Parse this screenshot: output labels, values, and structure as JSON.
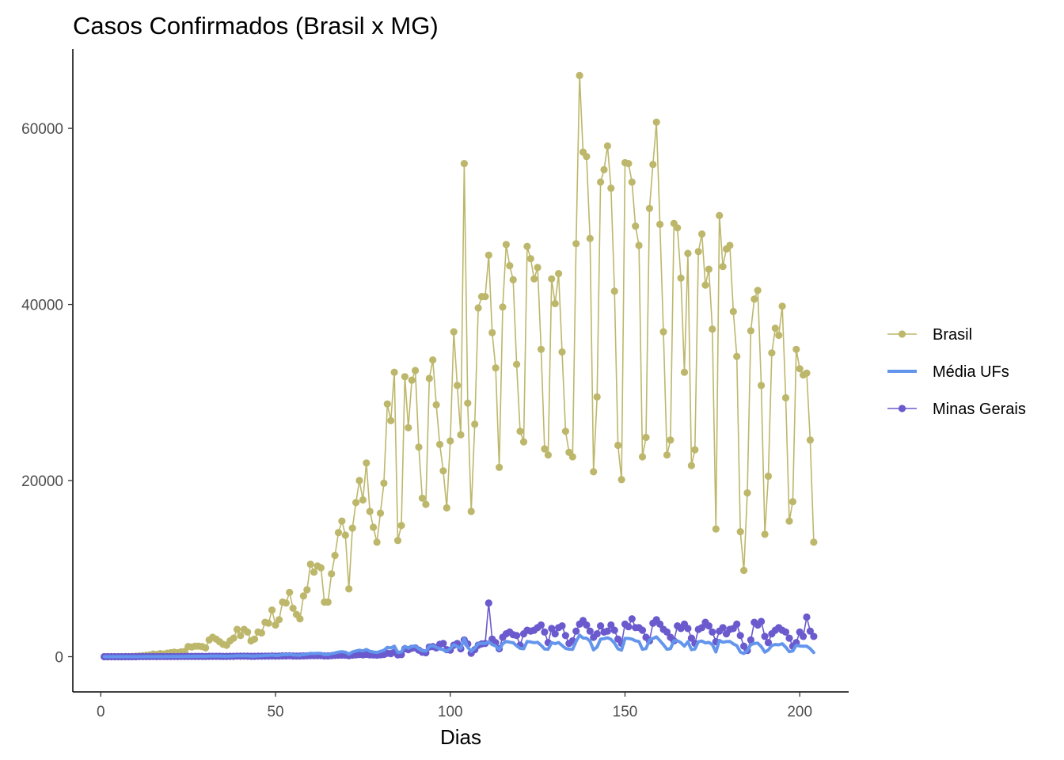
{
  "chart_data": {
    "type": "line",
    "title": "Casos Confirmados (Brasil x MG)",
    "xlabel": "Dias",
    "ylabel": "",
    "xlim": [
      -8,
      214
    ],
    "ylim": [
      -4000,
      69000
    ],
    "x_ticks": [
      0,
      50,
      100,
      150,
      200
    ],
    "y_ticks": [
      0,
      20000,
      40000,
      60000
    ],
    "grid": false,
    "legend_position": "right",
    "series": [
      {
        "name": "Brasil",
        "color": "#bdb76b",
        "style": "line-points",
        "x": [
          1,
          2,
          3,
          4,
          5,
          6,
          7,
          8,
          9,
          10,
          11,
          12,
          13,
          14,
          15,
          16,
          17,
          18,
          19,
          20,
          21,
          22,
          23,
          24,
          25,
          26,
          27,
          28,
          29,
          30,
          31,
          32,
          33,
          34,
          35,
          36,
          37,
          38,
          39,
          40,
          41,
          42,
          43,
          44,
          45,
          46,
          47,
          48,
          49,
          50,
          51,
          52,
          53,
          54,
          55,
          56,
          57,
          58,
          59,
          60,
          61,
          62,
          63,
          64,
          65,
          66,
          67,
          68,
          69,
          70,
          71,
          72,
          73,
          74,
          75,
          76,
          77,
          78,
          79,
          80,
          81,
          82,
          83,
          84,
          85,
          86,
          87,
          88,
          89,
          90,
          91,
          92,
          93,
          94,
          95,
          96,
          97,
          98,
          99,
          100,
          101,
          102,
          103,
          104,
          105,
          106,
          107,
          108,
          109,
          110,
          111,
          112,
          113,
          114,
          115,
          116,
          117,
          118,
          119,
          120,
          121,
          122,
          123,
          124,
          125,
          126,
          127,
          128,
          129,
          130,
          131,
          132,
          133,
          134,
          135,
          136,
          137,
          138,
          139,
          140,
          141,
          142,
          143,
          144,
          145,
          146,
          147,
          148,
          149,
          150,
          151,
          152,
          153,
          154,
          155,
          156,
          157,
          158,
          159,
          160,
          161,
          162,
          163,
          164,
          165,
          166,
          167,
          168,
          169,
          170,
          171,
          172,
          173,
          174,
          175,
          176,
          177,
          178,
          179,
          180,
          181,
          182,
          183,
          184,
          185,
          186,
          187,
          188,
          189,
          190,
          191,
          192,
          193,
          194,
          195,
          196,
          197,
          198,
          199,
          200,
          201,
          202,
          203,
          204
        ],
        "values": [
          0,
          0,
          0,
          0,
          0,
          0,
          10,
          20,
          30,
          50,
          70,
          100,
          150,
          200,
          300,
          250,
          350,
          300,
          400,
          450,
          500,
          450,
          550,
          600,
          1150,
          1100,
          1200,
          1200,
          1150,
          1000,
          1900,
          2200,
          2000,
          1700,
          1400,
          1300,
          1800,
          2100,
          3100,
          2400,
          3100,
          2800,
          1800,
          2000,
          2800,
          2700,
          3900,
          3800,
          5300,
          3600,
          4200,
          6200,
          6100,
          7300,
          5500,
          4800,
          4300,
          6900,
          7600,
          10500,
          9600,
          10300,
          10100,
          6200,
          6200,
          9400,
          11500,
          14100,
          15400,
          13800,
          7700,
          14600,
          17500,
          20000,
          17800,
          22000,
          16500,
          14700,
          13000,
          16300,
          19700,
          28700,
          26800,
          32300,
          13200,
          14900,
          31800,
          26000,
          31400,
          32500,
          23800,
          18000,
          17300,
          31600,
          33700,
          28600,
          24100,
          21100,
          16900,
          24500,
          36900,
          30800,
          25200,
          56000,
          28800,
          16500,
          26400,
          39600,
          40900,
          40900,
          45600,
          36800,
          32800,
          21500,
          39700,
          46800,
          44400,
          42800,
          33200,
          25600,
          24400,
          46600,
          45200,
          42900,
          44200,
          34900,
          23600,
          22900,
          42900,
          40100,
          43500,
          34600,
          25600,
          23200,
          22700,
          46900,
          66000,
          57300,
          56800,
          47500,
          21000,
          29500,
          53900,
          55300,
          58000,
          53200,
          41500,
          24000,
          20100,
          56100,
          56000,
          53900,
          48900,
          46700,
          22700,
          24900,
          50900,
          55900,
          60700,
          49100,
          36900,
          22900,
          24600,
          49200,
          48700,
          43000,
          32300,
          45800,
          21700,
          23500,
          46000,
          48000,
          42200,
          44000,
          37200,
          14500,
          50100,
          44300,
          46300,
          46700,
          39200,
          34100,
          14200,
          9800,
          18600,
          37000,
          40600,
          41600,
          30800,
          13900,
          20500,
          34500,
          37300,
          36500,
          39800,
          29400,
          15400,
          17600,
          34900,
          32700,
          32000,
          32200,
          24600,
          13000
        ]
      },
      {
        "name": "Média UFs",
        "color": "#6495ed",
        "style": "line",
        "x": [
          1,
          2,
          3,
          4,
          5,
          6,
          7,
          8,
          9,
          10,
          11,
          12,
          13,
          14,
          15,
          16,
          17,
          18,
          19,
          20,
          21,
          22,
          23,
          24,
          25,
          26,
          27,
          28,
          29,
          30,
          31,
          32,
          33,
          34,
          35,
          36,
          37,
          38,
          39,
          40,
          41,
          42,
          43,
          44,
          45,
          46,
          47,
          48,
          49,
          50,
          51,
          52,
          53,
          54,
          55,
          56,
          57,
          58,
          59,
          60,
          61,
          62,
          63,
          64,
          65,
          66,
          67,
          68,
          69,
          70,
          71,
          72,
          73,
          74,
          75,
          76,
          77,
          78,
          79,
          80,
          81,
          82,
          83,
          84,
          85,
          86,
          87,
          88,
          89,
          90,
          91,
          92,
          93,
          94,
          95,
          96,
          97,
          98,
          99,
          100,
          101,
          102,
          103,
          104,
          105,
          106,
          107,
          108,
          109,
          110,
          111,
          112,
          113,
          114,
          115,
          116,
          117,
          118,
          119,
          120,
          121,
          122,
          123,
          124,
          125,
          126,
          127,
          128,
          129,
          130,
          131,
          132,
          133,
          134,
          135,
          136,
          137,
          138,
          139,
          140,
          141,
          142,
          143,
          144,
          145,
          146,
          147,
          148,
          149,
          150,
          151,
          152,
          153,
          154,
          155,
          156,
          157,
          158,
          159,
          160,
          161,
          162,
          163,
          164,
          165,
          166,
          167,
          168,
          169,
          170,
          171,
          172,
          173,
          174,
          175,
          176,
          177,
          178,
          179,
          180,
          181,
          182,
          183,
          184,
          185,
          186,
          187,
          188,
          189,
          190,
          191,
          192,
          193,
          194,
          195,
          196,
          197,
          198,
          199,
          200,
          201,
          202,
          203,
          204
        ],
        "values": [
          0,
          0,
          0,
          0,
          0,
          0,
          0,
          1,
          1,
          2,
          3,
          4,
          6,
          7,
          11,
          9,
          13,
          11,
          15,
          17,
          19,
          17,
          20,
          22,
          43,
          41,
          44,
          44,
          43,
          37,
          70,
          81,
          74,
          63,
          52,
          48,
          67,
          78,
          115,
          89,
          115,
          104,
          67,
          74,
          104,
          100,
          144,
          141,
          196,
          133,
          156,
          230,
          226,
          270,
          204,
          178,
          159,
          256,
          281,
          389,
          356,
          381,
          374,
          230,
          230,
          348,
          426,
          522,
          570,
          511,
          285,
          541,
          648,
          741,
          659,
          815,
          611,
          544,
          481,
          604,
          730,
          1063,
          993,
          1196,
          489,
          552,
          1178,
          963,
          1163,
          1204,
          881,
          667,
          641,
          1170,
          1248,
          1059,
          893,
          781,
          626,
          907,
          1367,
          1141,
          933,
          2074,
          1067,
          611,
          978,
          1467,
          1515,
          1515,
          1689,
          1363,
          1215,
          796,
          1470,
          1733,
          1644,
          1585,
          1230,
          948,
          904,
          1726,
          1674,
          1589,
          1637,
          1293,
          874,
          848,
          1589,
          1485,
          1611,
          1281,
          948,
          859,
          841,
          1737,
          2444,
          2122,
          2104,
          1759,
          778,
          1093,
          1996,
          2048,
          2148,
          1970,
          1537,
          889,
          744,
          2078,
          2074,
          1996,
          1811,
          1730,
          841,
          922,
          1885,
          2070,
          2248,
          1819,
          1367,
          848,
          911,
          1822,
          1804,
          1593,
          1196,
          1696,
          804,
          870,
          1704,
          1778,
          1563,
          1630,
          1378,
          537,
          1856,
          1641,
          1715,
          1730,
          1452,
          1263,
          526,
          363,
          689,
          1370,
          1504,
          1541,
          1141,
          515,
          759,
          1278,
          1381,
          1352,
          1474,
          1089,
          570,
          652,
          1293,
          1211,
          1185,
          1193,
          911,
          481
        ]
      },
      {
        "name": "Minas Gerais",
        "color": "#6a5acd",
        "style": "line-points",
        "x": [
          1,
          2,
          3,
          4,
          5,
          6,
          7,
          8,
          9,
          10,
          11,
          12,
          13,
          14,
          15,
          16,
          17,
          18,
          19,
          20,
          21,
          22,
          23,
          24,
          25,
          26,
          27,
          28,
          29,
          30,
          31,
          32,
          33,
          34,
          35,
          36,
          37,
          38,
          39,
          40,
          41,
          42,
          43,
          44,
          45,
          46,
          47,
          48,
          49,
          50,
          51,
          52,
          53,
          54,
          55,
          56,
          57,
          58,
          59,
          60,
          61,
          62,
          63,
          64,
          65,
          66,
          67,
          68,
          69,
          70,
          71,
          72,
          73,
          74,
          75,
          76,
          77,
          78,
          79,
          80,
          81,
          82,
          83,
          84,
          85,
          86,
          87,
          88,
          89,
          90,
          91,
          92,
          93,
          94,
          95,
          96,
          97,
          98,
          99,
          100,
          101,
          102,
          103,
          104,
          105,
          106,
          107,
          108,
          109,
          110,
          111,
          112,
          113,
          114,
          115,
          116,
          117,
          118,
          119,
          120,
          121,
          122,
          123,
          124,
          125,
          126,
          127,
          128,
          129,
          130,
          131,
          132,
          133,
          134,
          135,
          136,
          137,
          138,
          139,
          140,
          141,
          142,
          143,
          144,
          145,
          146,
          147,
          148,
          149,
          150,
          151,
          152,
          153,
          154,
          155,
          156,
          157,
          158,
          159,
          160,
          161,
          162,
          163,
          164,
          165,
          166,
          167,
          168,
          169,
          170,
          171,
          172,
          173,
          174,
          175,
          176,
          177,
          178,
          179,
          180,
          181,
          182,
          183,
          184,
          185,
          186,
          187,
          188,
          189,
          190,
          191,
          192,
          193,
          194,
          195,
          196,
          197,
          198,
          199,
          200,
          201,
          202,
          203,
          204
        ],
        "values": [
          0,
          0,
          0,
          0,
          0,
          0,
          1,
          2,
          3,
          4,
          6,
          8,
          10,
          12,
          15,
          13,
          16,
          15,
          18,
          20,
          22,
          20,
          24,
          26,
          35,
          33,
          36,
          36,
          35,
          30,
          45,
          50,
          47,
          42,
          38,
          36,
          44,
          48,
          60,
          52,
          60,
          57,
          45,
          47,
          57,
          55,
          68,
          67,
          80,
          64,
          70,
          90,
          89,
          100,
          84,
          76,
          72,
          95,
          102,
          130,
          120,
          128,
          125,
          90,
          90,
          115,
          140,
          165,
          180,
          170,
          110,
          180,
          210,
          240,
          220,
          260,
          210,
          190,
          180,
          210,
          250,
          400,
          350,
          500,
          200,
          230,
          900,
          800,
          950,
          1000,
          750,
          500,
          450,
          1100,
          1150,
          1000,
          1400,
          1500,
          800,
          750,
          1300,
          1500,
          900,
          1900,
          1450,
          400,
          800,
          1300,
          1450,
          1500,
          6100,
          2000,
          1600,
          900,
          2200,
          2600,
          2800,
          2500,
          2400,
          1300,
          2600,
          3000,
          2900,
          3000,
          3300,
          3600,
          2800,
          1600,
          3200,
          2600,
          3300,
          3500,
          2400,
          1500,
          1800,
          2900,
          3700,
          4100,
          3600,
          2900,
          2200,
          2600,
          3500,
          2800,
          2900,
          3600,
          3000,
          2000,
          1500,
          3700,
          3400,
          4300,
          3300,
          3300,
          3000,
          2200,
          1800,
          3800,
          4200,
          3700,
          3100,
          2800,
          2200,
          1800,
          3500,
          3200,
          3700,
          3200,
          2100,
          1500,
          3100,
          3300,
          3900,
          3500,
          2800,
          1700,
          2900,
          3300,
          2600,
          3100,
          3200,
          3700,
          2400,
          1200,
          700,
          1900,
          3900,
          3600,
          4000,
          2300,
          1600,
          2600,
          3000,
          3300,
          3000,
          2800,
          2100,
          1200,
          1600,
          2800,
          2300,
          4500,
          2900,
          2300
        ]
      }
    ]
  }
}
